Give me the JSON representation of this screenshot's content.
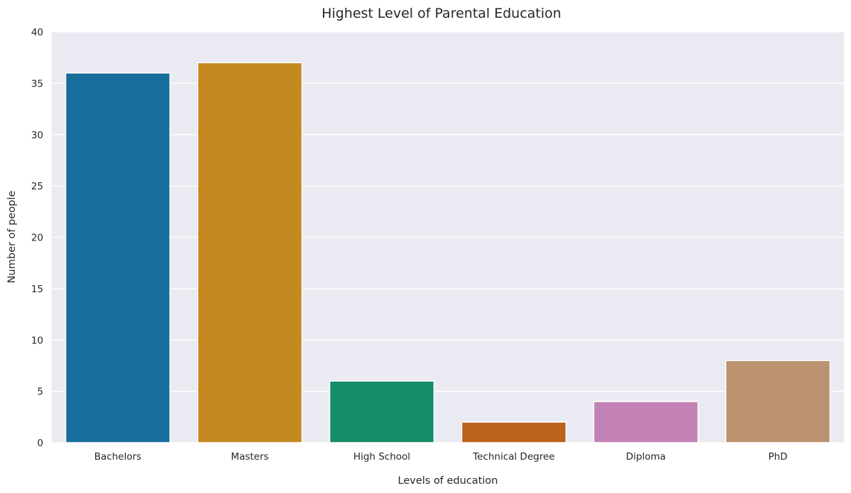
{
  "chart_data": {
    "type": "bar",
    "title": "Highest Level of Parental Education",
    "xlabel": "Levels of education",
    "ylabel": "Number of people",
    "categories": [
      "Bachelors",
      "Masters",
      "High School",
      "Technical Degree",
      "Diploma",
      "PhD"
    ],
    "values": [
      36,
      37,
      6,
      2,
      4,
      8
    ],
    "colors": [
      "#176d9c",
      "#c38820",
      "#158b6a",
      "#ba611b",
      "#c282b5",
      "#bb9370"
    ],
    "ylim": [
      0,
      40
    ],
    "yticks": [
      "0",
      "5",
      "10",
      "15",
      "20",
      "25",
      "30",
      "35",
      "40"
    ],
    "grid": true,
    "background": "#eaeaf2",
    "grid_color": "#ffffff",
    "legend": "none"
  }
}
